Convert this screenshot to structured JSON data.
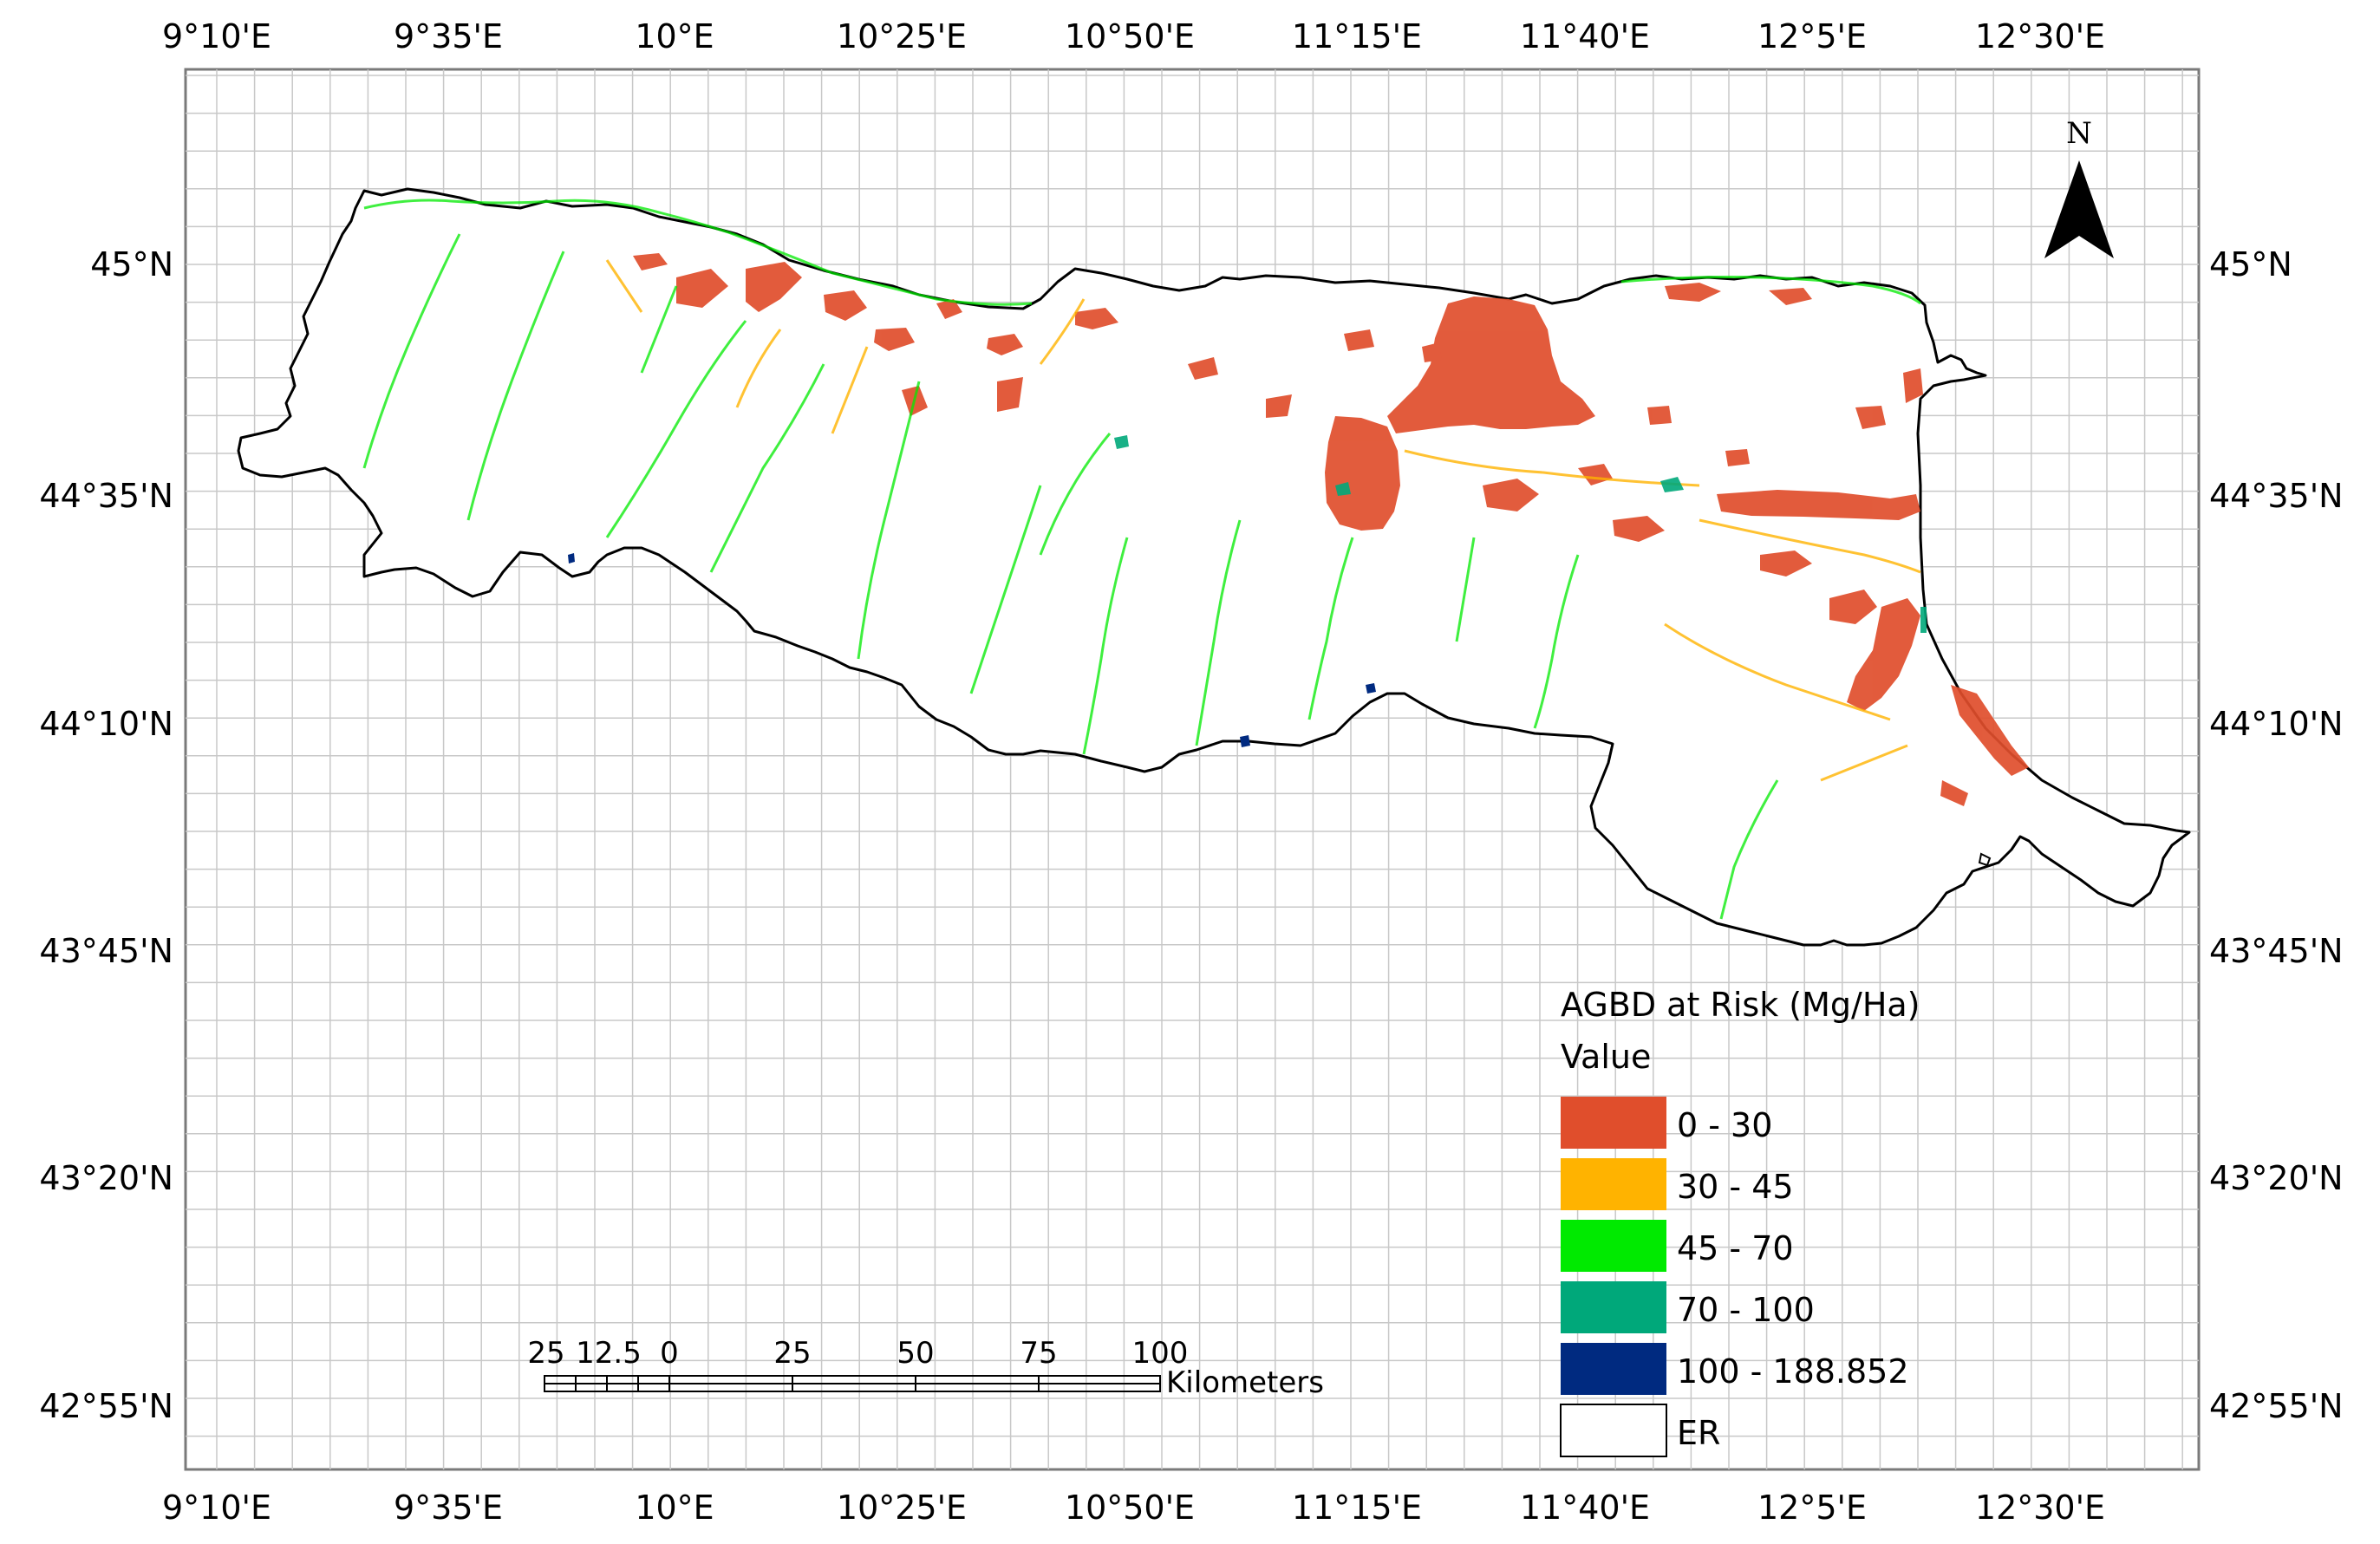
{
  "top_lon_labels": [
    "9°10'E",
    "9°35'E",
    "10°E",
    "10°25'E",
    "10°50'E",
    "11°15'E",
    "11°40'E",
    "12°5'E",
    "12°30'E"
  ],
  "bottom_lon_labels": [
    "9°10'E",
    "9°35'E",
    "10°E",
    "10°25'E",
    "10°50'E",
    "11°15'E",
    "11°40'E",
    "12°5'E",
    "12°30'E"
  ],
  "left_lat_labels": [
    "45°N",
    "44°35'N",
    "44°10'N",
    "43°45'N",
    "43°20'N",
    "42°55'N"
  ],
  "right_lat_labels": [
    "45°N",
    "44°35'N",
    "44°10'N",
    "43°45'N",
    "43°20'N",
    "42°55'N"
  ],
  "north_arrow": {
    "label": "N",
    "icon": "north-arrow-icon"
  },
  "scale_bar": {
    "tick_labels": [
      "25",
      "12.5",
      "0",
      "25",
      "50",
      "75",
      "100"
    ],
    "unit": "Kilometers"
  },
  "legend": {
    "title": "AGBD at Risk (Mg/Ha)",
    "subtitle": "Value",
    "classes": [
      {
        "label": "0 - 30",
        "color": "#E04E2C"
      },
      {
        "label": "30 - 45",
        "color": "#FFB300"
      },
      {
        "label": "45 - 70",
        "color": "#00EA00"
      },
      {
        "label": "70 - 100",
        "color": "#00A87A"
      },
      {
        "label": "100 - 188.852",
        "color": "#002A80"
      },
      {
        "label": "ER",
        "color": "#FFFFFF"
      }
    ]
  },
  "colors": {
    "grid": "#c8c8c8",
    "frame": "#000000",
    "region_outline": "#000000"
  }
}
